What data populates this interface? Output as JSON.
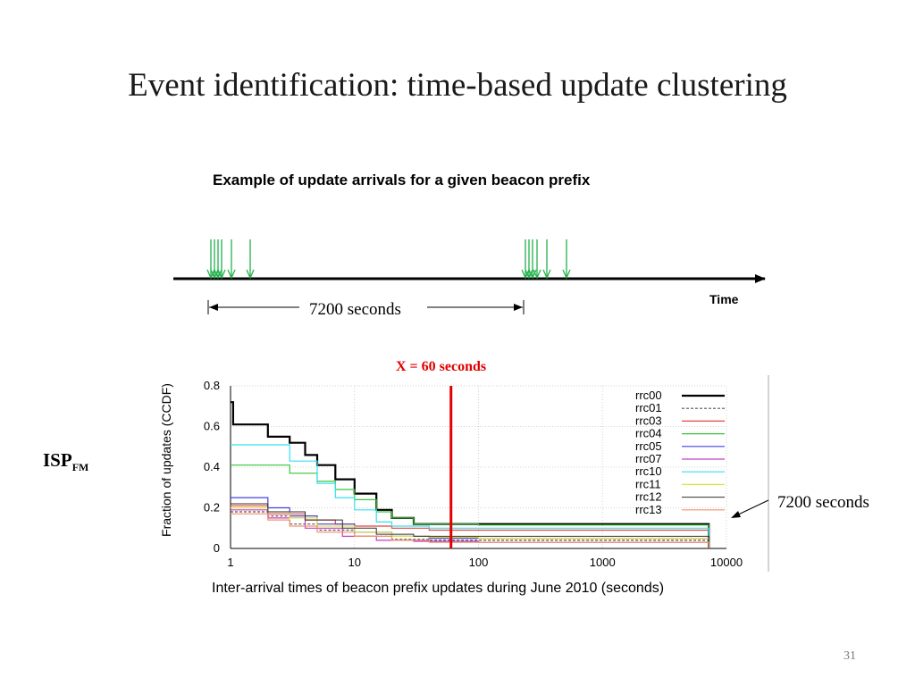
{
  "slide": {
    "title": "Event identification: time-based update clustering",
    "page_number": "31"
  },
  "timeline": {
    "subtitle": "Example of update arrivals for a given beacon prefix",
    "axis_label": "Time",
    "interval_label": "7200 seconds"
  },
  "chart_labels": {
    "threshold_label": "X = 60 seconds",
    "isp_main": "ISP",
    "isp_sub": "FM",
    "end_annotation": "7200 seconds"
  },
  "colors": {
    "arrow_green": "#22b14c",
    "threshold_red": "#e00000",
    "title_text": "#1a1a1a"
  },
  "chart_data": {
    "type": "line",
    "xscale": "log",
    "xlim": [
      1,
      10000
    ],
    "ylim": [
      0,
      0.8
    ],
    "xticks": [
      1,
      10,
      100,
      1000,
      10000
    ],
    "xtick_labels": [
      "1",
      "10",
      "100",
      "1000",
      "10000"
    ],
    "yticks": [
      0,
      0.2,
      0.4,
      0.6,
      0.8
    ],
    "ytick_labels": [
      "0",
      "0.2",
      "0.4",
      "0.6",
      "0.8"
    ],
    "xlabel": "Inter-arrival times of beacon prefix updates during June 2010 (seconds)",
    "ylabel": "Fraction of updates (CCDF)",
    "grid": true,
    "legend_position": "top-right",
    "threshold_x": 60,
    "series": [
      {
        "name": "rrc00",
        "color": "#000000",
        "dash": "",
        "width": 2.2,
        "points": [
          [
            1,
            0.72
          ],
          [
            1.05,
            0.61
          ],
          [
            2,
            0.55
          ],
          [
            3,
            0.52
          ],
          [
            4,
            0.46
          ],
          [
            5,
            0.41
          ],
          [
            7,
            0.34
          ],
          [
            10,
            0.27
          ],
          [
            15,
            0.19
          ],
          [
            20,
            0.15
          ],
          [
            30,
            0.12
          ],
          [
            60,
            0.12
          ],
          [
            100,
            0.12
          ],
          [
            1000,
            0.12
          ],
          [
            7200,
            0.11
          ]
        ]
      },
      {
        "name": "rrc01",
        "color": "#555555",
        "dash": "3,2",
        "width": 1.2,
        "points": [
          [
            1,
            0.18
          ],
          [
            2,
            0.16
          ],
          [
            3,
            0.12
          ],
          [
            5,
            0.09
          ],
          [
            10,
            0.06
          ],
          [
            20,
            0.045
          ],
          [
            40,
            0.04
          ],
          [
            100,
            0.04
          ],
          [
            7200,
            0.04
          ]
        ]
      },
      {
        "name": "rrc03",
        "color": "#e8423f",
        "dash": "",
        "width": 1.2,
        "points": [
          [
            1,
            0.21
          ],
          [
            2,
            0.17
          ],
          [
            4,
            0.14
          ],
          [
            7,
            0.12
          ],
          [
            10,
            0.11
          ],
          [
            20,
            0.1
          ],
          [
            40,
            0.09
          ],
          [
            100,
            0.09
          ],
          [
            7200,
            0.085
          ]
        ]
      },
      {
        "name": "rrc04",
        "color": "#39c43a",
        "dash": "",
        "width": 1.2,
        "points": [
          [
            1,
            0.41
          ],
          [
            2,
            0.41
          ],
          [
            3,
            0.37
          ],
          [
            5,
            0.33
          ],
          [
            7,
            0.29
          ],
          [
            10,
            0.24
          ],
          [
            15,
            0.18
          ],
          [
            20,
            0.15
          ],
          [
            30,
            0.12
          ],
          [
            100,
            0.115
          ],
          [
            7200,
            0.11
          ]
        ]
      },
      {
        "name": "rrc05",
        "color": "#4040e0",
        "dash": "",
        "width": 1.2,
        "points": [
          [
            1,
            0.25
          ],
          [
            2,
            0.2
          ],
          [
            3,
            0.16
          ],
          [
            5,
            0.12
          ],
          [
            10,
            0.08
          ],
          [
            20,
            0.06
          ],
          [
            40,
            0.05
          ],
          [
            100,
            0.05
          ],
          [
            7200,
            0.045
          ]
        ]
      },
      {
        "name": "rrc07",
        "color": "#c040c0",
        "dash": "",
        "width": 1.2,
        "points": [
          [
            1,
            0.19
          ],
          [
            2,
            0.15
          ],
          [
            4,
            0.1
          ],
          [
            8,
            0.06
          ],
          [
            15,
            0.04
          ],
          [
            30,
            0.035
          ],
          [
            100,
            0.03
          ],
          [
            7200,
            0.03
          ]
        ]
      },
      {
        "name": "rrc10",
        "color": "#33e0f0",
        "dash": "",
        "width": 1.2,
        "points": [
          [
            1,
            0.51
          ],
          [
            2,
            0.51
          ],
          [
            3,
            0.43
          ],
          [
            5,
            0.32
          ],
          [
            7,
            0.25
          ],
          [
            10,
            0.19
          ],
          [
            15,
            0.13
          ],
          [
            20,
            0.11
          ],
          [
            40,
            0.1
          ],
          [
            100,
            0.1
          ],
          [
            7200,
            0.1
          ]
        ]
      },
      {
        "name": "rrc11",
        "color": "#e0e040",
        "dash": "",
        "width": 1.2,
        "points": [
          [
            1,
            0.2
          ],
          [
            2,
            0.18
          ],
          [
            3,
            0.15
          ],
          [
            5,
            0.11
          ],
          [
            10,
            0.08
          ],
          [
            20,
            0.06
          ],
          [
            40,
            0.055
          ],
          [
            100,
            0.05
          ],
          [
            7200,
            0.05
          ]
        ]
      },
      {
        "name": "rrc12",
        "color": "#303030",
        "dash": "",
        "width": 1.0,
        "points": [
          [
            1,
            0.22
          ],
          [
            2,
            0.18
          ],
          [
            4,
            0.14
          ],
          [
            8,
            0.1
          ],
          [
            15,
            0.07
          ],
          [
            30,
            0.06
          ],
          [
            100,
            0.06
          ],
          [
            7200,
            0.055
          ]
        ]
      },
      {
        "name": "rrc13",
        "color": "#f2906a",
        "dash": "",
        "width": 1.2,
        "points": [
          [
            1,
            0.17
          ],
          [
            2,
            0.14
          ],
          [
            3,
            0.11
          ],
          [
            5,
            0.08
          ],
          [
            10,
            0.06
          ],
          [
            20,
            0.04
          ],
          [
            40,
            0.03
          ],
          [
            100,
            0.03
          ],
          [
            7200,
            0.025
          ]
        ]
      }
    ]
  }
}
